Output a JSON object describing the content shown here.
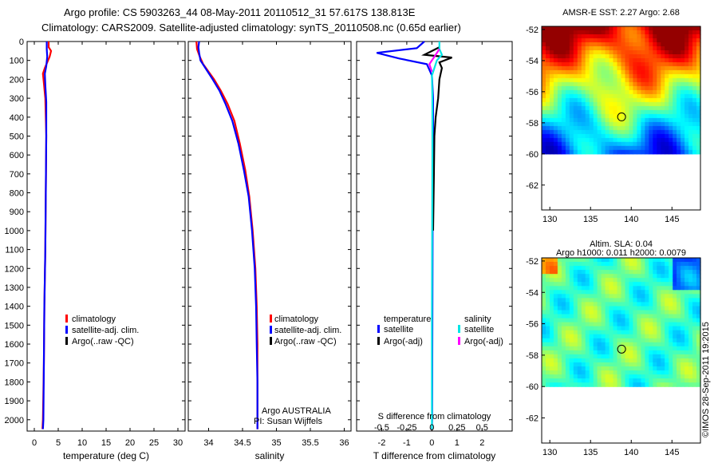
{
  "header": {
    "line1": "Argo profile: CS 5903263_44 08-May-2011 20110512_31 57.617S 138.813E",
    "line2": "Climatology: CARS2009. Satellite-adjusted climatology: synTS_20110508.nc (0.65d earlier)"
  },
  "footer": {
    "credit": "©IMOS 28-Sep-2011 19:2015"
  },
  "colors": {
    "climatology": "#ff0000",
    "satellite": "#0000ff",
    "argo": "#000000",
    "satellite_sal": "#00e5e5",
    "argo_sal": "#ff00ff"
  },
  "chart_data": [
    {
      "id": "temp",
      "type": "line",
      "xlabel": "temperature (deg C)",
      "ylabel": "",
      "xlim": [
        -1.5,
        31.5
      ],
      "ylim": [
        2060,
        0
      ],
      "xticks": [
        0,
        5,
        10,
        15,
        20,
        25,
        30
      ],
      "yticks": [
        0,
        100,
        200,
        300,
        400,
        500,
        600,
        700,
        800,
        900,
        1000,
        1100,
        1200,
        1300,
        1400,
        1500,
        1600,
        1700,
        1800,
        1900,
        2000
      ],
      "legend": [
        "climatology",
        "satellite-adj. clim.",
        "Argo(..raw -QC)"
      ],
      "series": [
        {
          "name": "climatology",
          "points": [
            [
              3.0,
              0
            ],
            [
              3.0,
              30
            ],
            [
              3.5,
              50
            ],
            [
              3.2,
              80
            ],
            [
              2.2,
              140
            ],
            [
              1.8,
              170
            ],
            [
              2.0,
              220
            ],
            [
              2.3,
              300
            ],
            [
              2.5,
              500
            ],
            [
              2.4,
              800
            ],
            [
              2.3,
              1100
            ],
            [
              2.1,
              1400
            ],
            [
              2.0,
              1700
            ],
            [
              1.8,
              2000
            ],
            [
              1.7,
              2050
            ]
          ]
        },
        {
          "name": "satellite-adj. clim.",
          "points": [
            [
              2.6,
              0
            ],
            [
              2.6,
              40
            ],
            [
              2.7,
              80
            ],
            [
              2.5,
              130
            ],
            [
              2.2,
              170
            ],
            [
              2.3,
              230
            ],
            [
              2.5,
              320
            ],
            [
              2.5,
              500
            ],
            [
              2.4,
              800
            ],
            [
              2.3,
              1100
            ],
            [
              2.1,
              1400
            ],
            [
              2.0,
              1700
            ],
            [
              1.9,
              2000
            ],
            [
              1.8,
              2050
            ]
          ]
        }
      ]
    },
    {
      "id": "sal",
      "type": "line",
      "xlabel": "salinity",
      "xlim": [
        33.7,
        36.1
      ],
      "ylim": [
        2060,
        0
      ],
      "xticks": [
        34,
        34.5,
        35,
        35.5,
        36
      ],
      "legend": [
        "climatology",
        "satellite-adj. clim.",
        "Argo(..raw -QC)"
      ],
      "annotations": [
        "Argo AUSTRALIA",
        "PI: Susan Wijffels"
      ],
      "series": [
        {
          "name": "climatology",
          "points": [
            [
              33.82,
              0
            ],
            [
              33.83,
              40
            ],
            [
              33.87,
              80
            ],
            [
              33.92,
              120
            ],
            [
              34.0,
              160
            ],
            [
              34.08,
              200
            ],
            [
              34.18,
              260
            ],
            [
              34.28,
              330
            ],
            [
              34.38,
              420
            ],
            [
              34.46,
              540
            ],
            [
              34.54,
              680
            ],
            [
              34.6,
              820
            ],
            [
              34.65,
              1000
            ],
            [
              34.69,
              1200
            ],
            [
              34.71,
              1400
            ],
            [
              34.72,
              1600
            ],
            [
              34.72,
              1800
            ],
            [
              34.72,
              2000
            ],
            [
              34.72,
              2050
            ]
          ]
        },
        {
          "name": "satellite-adj. clim.",
          "points": [
            [
              33.86,
              0
            ],
            [
              33.85,
              30
            ],
            [
              33.86,
              60
            ],
            [
              33.88,
              100
            ],
            [
              33.97,
              150
            ],
            [
              34.06,
              200
            ],
            [
              34.16,
              260
            ],
            [
              34.25,
              330
            ],
            [
              34.35,
              420
            ],
            [
              34.44,
              540
            ],
            [
              34.52,
              680
            ],
            [
              34.59,
              820
            ],
            [
              34.64,
              1000
            ],
            [
              34.68,
              1200
            ],
            [
              34.7,
              1400
            ],
            [
              34.71,
              1600
            ],
            [
              34.72,
              1800
            ],
            [
              34.72,
              2000
            ],
            [
              34.72,
              2050
            ]
          ]
        }
      ]
    },
    {
      "id": "diff",
      "type": "line",
      "xlabel": "T difference from climatology",
      "xlabel_top": "S difference from climatology",
      "xlim": [
        -3,
        3.2
      ],
      "ylim": [
        2060,
        0
      ],
      "xticks": [
        -2,
        -1,
        0,
        1,
        2
      ],
      "xticks_top_labels": [
        "-0.5",
        "-0.25",
        "0",
        "0.25",
        "0.5"
      ],
      "legend_headers": [
        "temperature",
        "salinity"
      ],
      "legend": [
        "satellite",
        "Argo(-adj)",
        "satellite",
        "Argo(-adj)"
      ],
      "series": [
        {
          "name": "T satellite",
          "color": "satellite",
          "points": [
            [
              -0.3,
              0
            ],
            [
              -0.6,
              35
            ],
            [
              -2.2,
              60
            ],
            [
              -1.3,
              90
            ],
            [
              -0.2,
              120
            ],
            [
              0.0,
              180
            ],
            [
              0.05,
              300
            ],
            [
              0.05,
              600
            ],
            [
              0.03,
              1000
            ],
            [
              0.02,
              1500
            ],
            [
              0.01,
              2000
            ],
            [
              0.0,
              2050
            ]
          ]
        },
        {
          "name": "T Argo",
          "color": "argo",
          "points": [
            [
              0.3,
              30
            ],
            [
              -0.3,
              70
            ],
            [
              0.8,
              85
            ],
            [
              0.3,
              110
            ],
            [
              0.4,
              140
            ],
            [
              0.3,
              200
            ],
            [
              0.25,
              300
            ],
            [
              0.15,
              400
            ],
            [
              0.1,
              500
            ],
            [
              0.08,
              700
            ],
            [
              0.05,
              1000
            ]
          ]
        },
        {
          "name": "S satellite",
          "color": "satellite_sal",
          "points": [
            [
              0.3,
              0
            ],
            [
              0.3,
              40
            ],
            [
              0.4,
              70
            ],
            [
              0.2,
              100
            ],
            [
              0.1,
              140
            ],
            [
              0.0,
              180
            ],
            [
              0.02,
              300
            ],
            [
              0.02,
              600
            ],
            [
              0.01,
              1000
            ],
            [
              0.0,
              1500
            ],
            [
              0.0,
              2000
            ],
            [
              0.0,
              2050
            ]
          ]
        },
        {
          "name": "S Argo",
          "color": "argo_sal",
          "points": [
            [
              0.3,
              40
            ],
            [
              0.1,
              80
            ],
            [
              -0.1,
              120
            ],
            [
              0.0,
              160
            ]
          ]
        }
      ]
    }
  ],
  "maps": [
    {
      "id": "sst",
      "title": "AMSR-E SST: 2.27 Argo: 2.68",
      "subtitle": "",
      "xticks": [
        130,
        135,
        140,
        145
      ],
      "yticks": [
        -52,
        -54,
        -56,
        -58,
        -60,
        -62
      ],
      "xlim": [
        129,
        148.5
      ],
      "ylim": [
        -63.6,
        -51.8
      ],
      "data_ylim": [
        -60,
        -51.8
      ],
      "marker": [
        138.813,
        -57.617
      ],
      "palette": "sst"
    },
    {
      "id": "sla",
      "title": "Altim. SLA: 0.04",
      "subtitle": "Argo h1000: 0.011 h2000: 0.0079",
      "xticks": [
        130,
        135,
        140,
        145
      ],
      "yticks": [
        -52,
        -54,
        -56,
        -58,
        -60,
        -62
      ],
      "xlim": [
        129,
        148.5
      ],
      "ylim": [
        -63.6,
        -51.8
      ],
      "data_ylim": [
        -60,
        -51.8
      ],
      "marker": [
        138.813,
        -57.617
      ],
      "palette": "sla"
    }
  ]
}
